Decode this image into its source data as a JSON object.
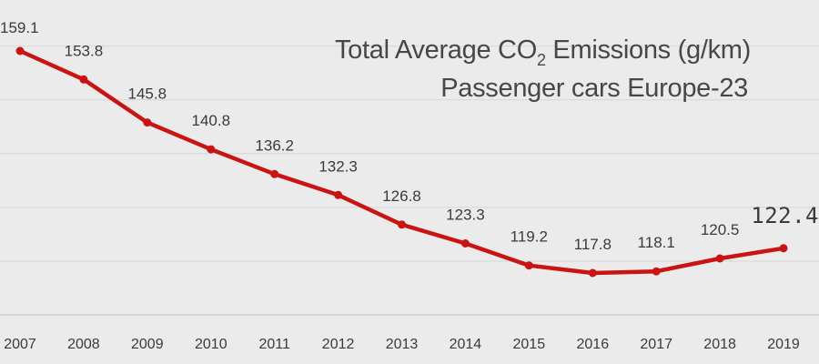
{
  "chart_data": {
    "type": "line",
    "title": "Total Average CO₂ Emissions (g/km)",
    "title_main": "Total Average CO",
    "title_sub": "2",
    "title_tail": " Emissions (g/km)",
    "subtitle": "Passenger cars Europe-23",
    "categories": [
      "2007",
      "2008",
      "2009",
      "2010",
      "2011",
      "2012",
      "2013",
      "2014",
      "2015",
      "2016",
      "2017",
      "2018",
      "2019"
    ],
    "values": [
      159.1,
      153.8,
      145.8,
      140.8,
      136.2,
      132.3,
      126.8,
      123.3,
      119.2,
      117.8,
      118.1,
      120.5,
      122.4
    ],
    "value_labels": [
      "159.1",
      "153.8",
      "145.8",
      "140.8",
      "136.2",
      "132.3",
      "126.8",
      "123.3",
      "119.2",
      "117.8",
      "118.1",
      "120.5",
      "122.4"
    ],
    "highlighted_index": 12,
    "ylim": [
      100,
      165
    ],
    "xlabel": "",
    "ylabel": "",
    "grid": "horizontal",
    "line_color": "#c91414",
    "background_color": "#ebebeb",
    "grid_color": "#d6d6d6"
  }
}
